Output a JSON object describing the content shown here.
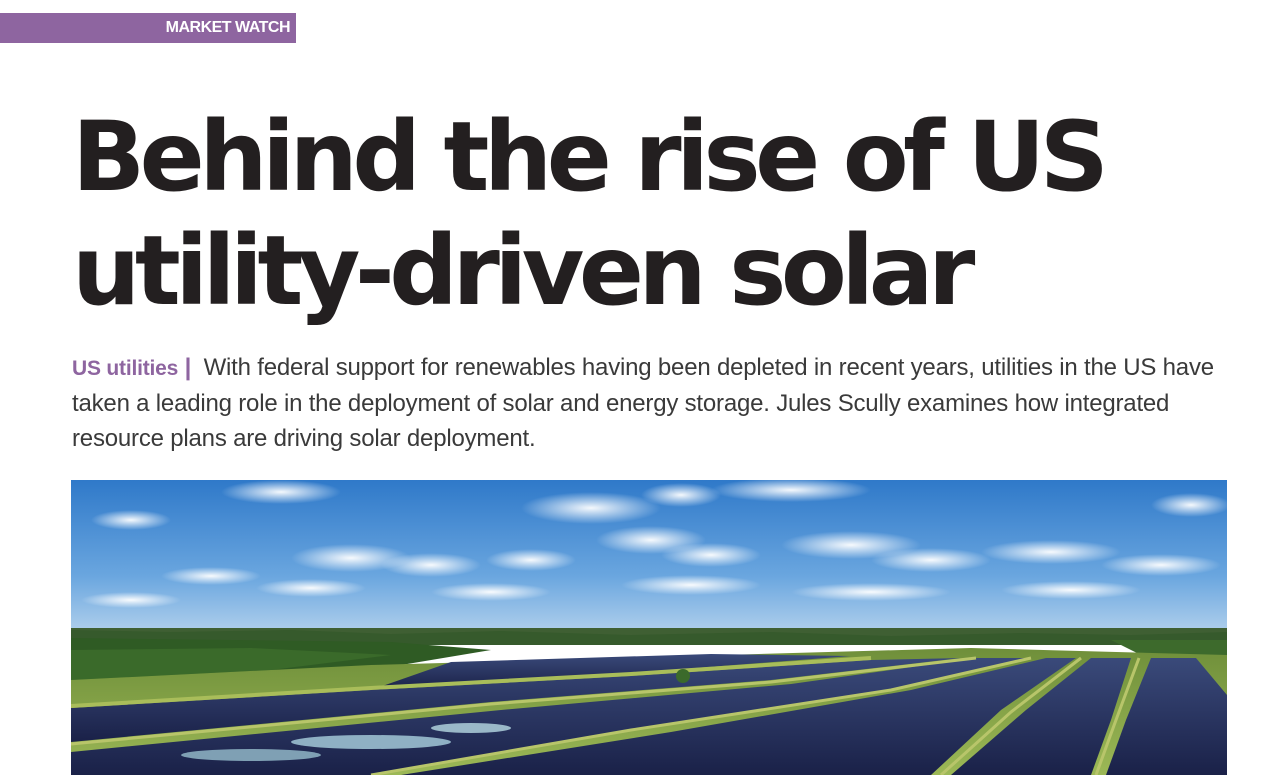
{
  "section_tag": "MARKET WATCH",
  "headline": {
    "line1": "Behind the rise of US",
    "line2": "utility-driven solar"
  },
  "standfirst": {
    "kicker": "US utilities",
    "separator": "|",
    "text": "With federal support for renewables having been depleted in recent years, utilities in the US have taken a leading role in the deployment of solar and energy storage. Jules Scully examines how integrated resource plans are driving solar deployment."
  },
  "colors": {
    "accent": "#8e65a0",
    "headline": "#231f20",
    "body": "#3a3a3a"
  }
}
